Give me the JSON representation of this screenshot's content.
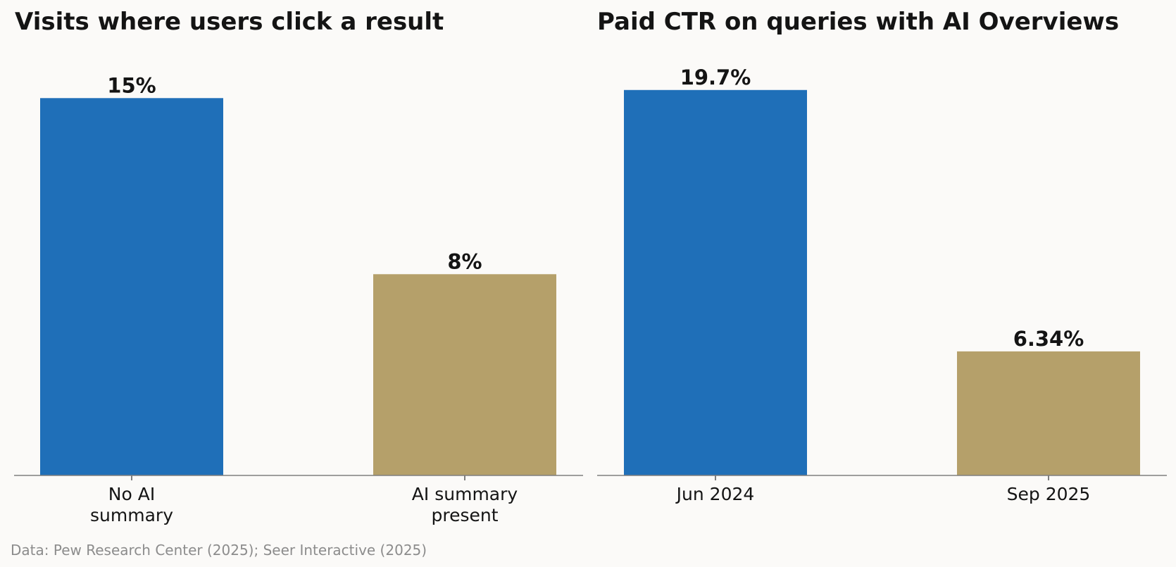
{
  "colors": {
    "primary_bar": "#1f6fb8",
    "secondary_bar": "#b5a06a",
    "background": "#fbfaf8",
    "text": "#141414",
    "footnote": "#8c8c8c"
  },
  "chart_data": [
    {
      "type": "bar",
      "title": "Visits where users click a result",
      "categories": [
        [
          "No AI",
          "summary"
        ],
        [
          "AI summary",
          "present"
        ]
      ],
      "values": [
        15,
        8
      ],
      "value_labels": [
        "15%",
        "8%"
      ],
      "unit": "%",
      "ylim": [
        0,
        16.8
      ],
      "grid": false,
      "bar_colors": [
        "#1f6fb8",
        "#b5a06a"
      ]
    },
    {
      "type": "bar",
      "title": "Paid CTR on queries with AI Overviews",
      "categories": [
        [
          "Jun 2024"
        ],
        [
          "Sep 2025"
        ]
      ],
      "values": [
        19.7,
        6.34
      ],
      "value_labels": [
        "19.7%",
        "6.34%"
      ],
      "unit": "%",
      "ylim": [
        0,
        21.6
      ],
      "grid": false,
      "bar_colors": [
        "#1f6fb8",
        "#b5a06a"
      ]
    }
  ],
  "footnote": "Data: Pew Research Center (2025); Seer Interactive (2025)"
}
